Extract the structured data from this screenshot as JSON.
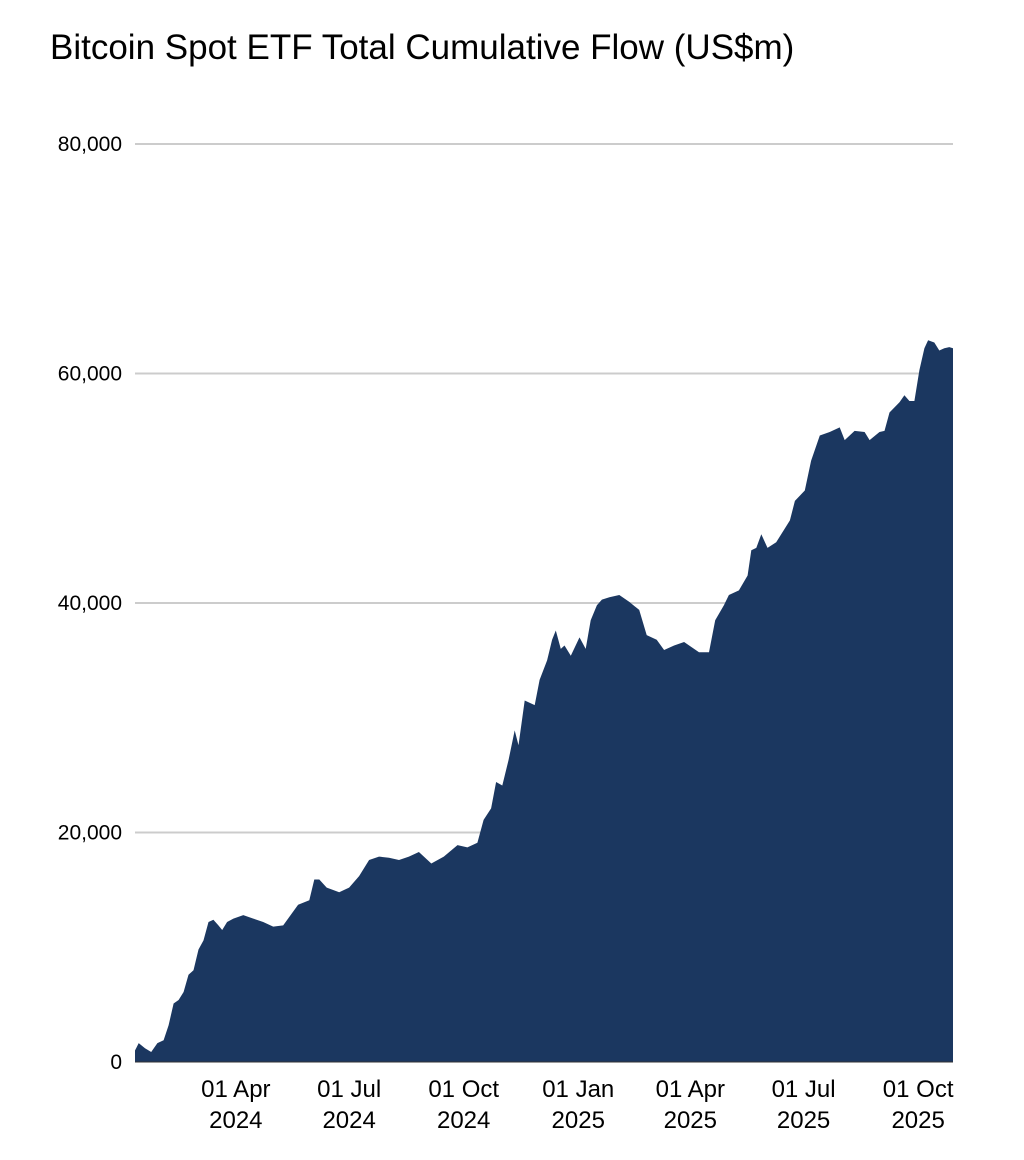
{
  "chart_data": {
    "type": "area",
    "title": "Bitcoin Spot ETF Total Cumulative Flow (US$m)",
    "xlabel": "",
    "ylabel": "",
    "ylim": [
      0,
      80000
    ],
    "xlim": [
      "2024-01-11",
      "2025-10-29"
    ],
    "grid": "horizontal",
    "color": "#1b3760",
    "y_ticks": [
      {
        "value": 0,
        "label": "0"
      },
      {
        "value": 20000,
        "label": "20,000"
      },
      {
        "value": 40000,
        "label": "40,000"
      },
      {
        "value": 60000,
        "label": "60,000"
      },
      {
        "value": 80000,
        "label": "80,000"
      }
    ],
    "x_ticks": [
      {
        "date": "2024-04-01",
        "line1": "01 Apr",
        "line2": "2024"
      },
      {
        "date": "2024-07-01",
        "line1": "01 Jul",
        "line2": "2024"
      },
      {
        "date": "2024-10-01",
        "line1": "01 Oct",
        "line2": "2024"
      },
      {
        "date": "2025-01-01",
        "line1": "01 Jan",
        "line2": "2025"
      },
      {
        "date": "2025-04-01",
        "line1": "01 Apr",
        "line2": "2025"
      },
      {
        "date": "2025-07-01",
        "line1": "01 Jul",
        "line2": "2025"
      },
      {
        "date": "2025-10-01",
        "line1": "01 Oct",
        "line2": "2025"
      }
    ],
    "points": [
      [
        "2024-01-11",
        1000
      ],
      [
        "2024-01-14",
        1650
      ],
      [
        "2024-01-19",
        1200
      ],
      [
        "2024-01-24",
        870
      ],
      [
        "2024-01-29",
        1650
      ],
      [
        "2024-02-03",
        1900
      ],
      [
        "2024-02-07",
        3200
      ],
      [
        "2024-02-11",
        5100
      ],
      [
        "2024-02-15",
        5400
      ],
      [
        "2024-02-19",
        6100
      ],
      [
        "2024-02-23",
        7600
      ],
      [
        "2024-02-27",
        8000
      ],
      [
        "2024-03-02",
        9800
      ],
      [
        "2024-03-06",
        10600
      ],
      [
        "2024-03-10",
        12200
      ],
      [
        "2024-03-14",
        12400
      ],
      [
        "2024-03-18",
        11900
      ],
      [
        "2024-03-21",
        11500
      ],
      [
        "2024-03-25",
        12200
      ],
      [
        "2024-03-30",
        12500
      ],
      [
        "2024-04-07",
        12800
      ],
      [
        "2024-04-15",
        12500
      ],
      [
        "2024-04-23",
        12200
      ],
      [
        "2024-05-01",
        11800
      ],
      [
        "2024-05-09",
        11900
      ],
      [
        "2024-05-15",
        12800
      ],
      [
        "2024-05-21",
        13700
      ],
      [
        "2024-05-30",
        14100
      ],
      [
        "2024-06-03",
        15900
      ],
      [
        "2024-06-07",
        15900
      ],
      [
        "2024-06-13",
        15200
      ],
      [
        "2024-06-23",
        14800
      ],
      [
        "2024-07-01",
        15200
      ],
      [
        "2024-07-09",
        16200
      ],
      [
        "2024-07-17",
        17600
      ],
      [
        "2024-07-25",
        17900
      ],
      [
        "2024-08-02",
        17800
      ],
      [
        "2024-08-10",
        17600
      ],
      [
        "2024-08-18",
        17900
      ],
      [
        "2024-08-26",
        18300
      ],
      [
        "2024-09-05",
        17300
      ],
      [
        "2024-09-15",
        17900
      ],
      [
        "2024-09-26",
        18900
      ],
      [
        "2024-10-04",
        18700
      ],
      [
        "2024-10-12",
        19100
      ],
      [
        "2024-10-17",
        21100
      ],
      [
        "2024-10-23",
        22100
      ],
      [
        "2024-10-27",
        24400
      ],
      [
        "2024-11-01",
        24100
      ],
      [
        "2024-11-06",
        26300
      ],
      [
        "2024-11-11",
        28900
      ],
      [
        "2024-11-14",
        27600
      ],
      [
        "2024-11-19",
        31500
      ],
      [
        "2024-11-27",
        31100
      ],
      [
        "2024-12-01",
        33300
      ],
      [
        "2024-12-07",
        35000
      ],
      [
        "2024-12-11",
        36800
      ],
      [
        "2024-12-14",
        37600
      ],
      [
        "2024-12-18",
        36000
      ],
      [
        "2024-12-21",
        36300
      ],
      [
        "2024-12-26",
        35400
      ],
      [
        "2025-01-02",
        37000
      ],
      [
        "2025-01-07",
        36000
      ],
      [
        "2025-01-11",
        38500
      ],
      [
        "2025-01-16",
        39800
      ],
      [
        "2025-01-20",
        40300
      ],
      [
        "2025-01-26",
        40500
      ],
      [
        "2025-02-03",
        40700
      ],
      [
        "2025-02-11",
        40100
      ],
      [
        "2025-02-19",
        39400
      ],
      [
        "2025-02-25",
        37200
      ],
      [
        "2025-03-05",
        36800
      ],
      [
        "2025-03-11",
        35900
      ],
      [
        "2025-03-19",
        36300
      ],
      [
        "2025-03-27",
        36600
      ],
      [
        "2025-04-08",
        35700
      ],
      [
        "2025-04-16",
        35700
      ],
      [
        "2025-04-21",
        38500
      ],
      [
        "2025-04-28",
        39800
      ],
      [
        "2025-05-02",
        40700
      ],
      [
        "2025-05-10",
        41100
      ],
      [
        "2025-05-17",
        42400
      ],
      [
        "2025-05-20",
        44600
      ],
      [
        "2025-05-24",
        44800
      ],
      [
        "2025-05-28",
        46000
      ],
      [
        "2025-06-02",
        44800
      ],
      [
        "2025-06-09",
        45300
      ],
      [
        "2025-06-16",
        46500
      ],
      [
        "2025-06-20",
        47200
      ],
      [
        "2025-06-24",
        48900
      ],
      [
        "2025-07-02",
        49800
      ],
      [
        "2025-07-07",
        52400
      ],
      [
        "2025-07-14",
        54600
      ],
      [
        "2025-07-22",
        54900
      ],
      [
        "2025-07-30",
        55300
      ],
      [
        "2025-08-03",
        54200
      ],
      [
        "2025-08-11",
        55000
      ],
      [
        "2025-08-19",
        54900
      ],
      [
        "2025-08-23",
        54200
      ],
      [
        "2025-08-31",
        54900
      ],
      [
        "2025-09-04",
        55000
      ],
      [
        "2025-09-08",
        56600
      ],
      [
        "2025-09-16",
        57500
      ],
      [
        "2025-09-20",
        58100
      ],
      [
        "2025-09-24",
        57600
      ],
      [
        "2025-09-28",
        57600
      ],
      [
        "2025-10-02",
        60300
      ],
      [
        "2025-10-06",
        62200
      ],
      [
        "2025-10-09",
        62900
      ],
      [
        "2025-10-14",
        62700
      ],
      [
        "2025-10-18",
        62000
      ],
      [
        "2025-10-22",
        62200
      ],
      [
        "2025-10-26",
        62300
      ],
      [
        "2025-10-29",
        62200
      ]
    ]
  }
}
